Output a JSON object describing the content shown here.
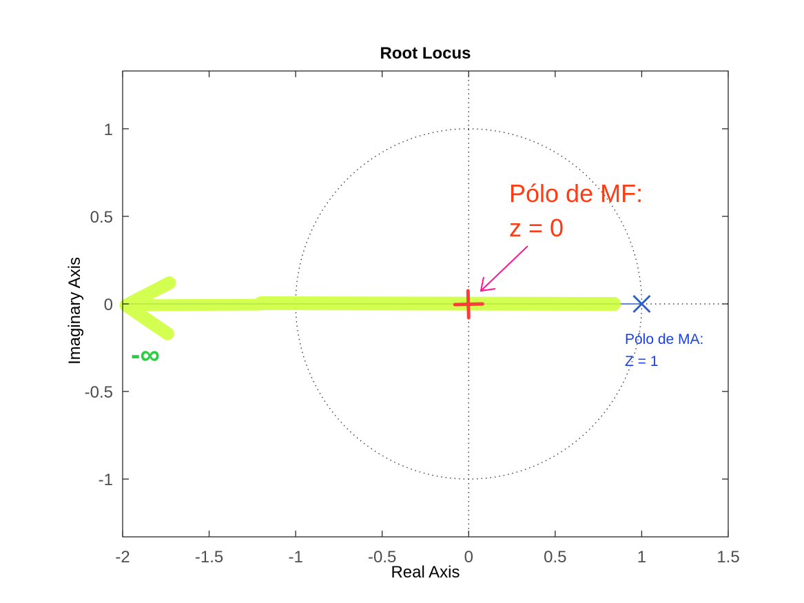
{
  "chart_data": {
    "type": "scatter",
    "title": "Root Locus",
    "xlabel": "Real Axis",
    "ylabel": "Imaginary Axis",
    "xlim": [
      -2,
      1.5
    ],
    "ylim": [
      -1.33,
      1.33
    ],
    "xticks": [
      -2,
      -1.5,
      -1,
      -0.5,
      0,
      0.5,
      1,
      1.5
    ],
    "xtick_labels": [
      "-2",
      "-1.5",
      "-1",
      "-0.5",
      "0",
      "0.5",
      "1",
      "1.5"
    ],
    "yticks": [
      -1,
      -0.5,
      0,
      0.5,
      1
    ],
    "ytick_labels": [
      "-1",
      "-0.5",
      "0",
      "0.5",
      "1"
    ],
    "grid": false,
    "unit_circle": true,
    "open_loop_pole": {
      "x": 1,
      "y": 0,
      "marker": "x",
      "color": "#2f5fc4"
    },
    "closed_loop_pole": {
      "x": 0,
      "y": 0,
      "marker": "+",
      "color": "#ff3b3b"
    },
    "locus": {
      "from_x": 0.98,
      "to_x": -2,
      "y": 0,
      "color": "#ccff33"
    },
    "annotations": {
      "mf_line1": "Pólo de MF:",
      "mf_line2": "z = 0",
      "ma_line1": "Pólo de MA:",
      "ma_line2": "Z = 1",
      "neg_infinity": "-∞"
    },
    "colors": {
      "mf_text": "#ff3b14",
      "ma_text": "#1a40e6",
      "infinity_text": "#2ecc40",
      "arrow": "#ff1493"
    }
  }
}
